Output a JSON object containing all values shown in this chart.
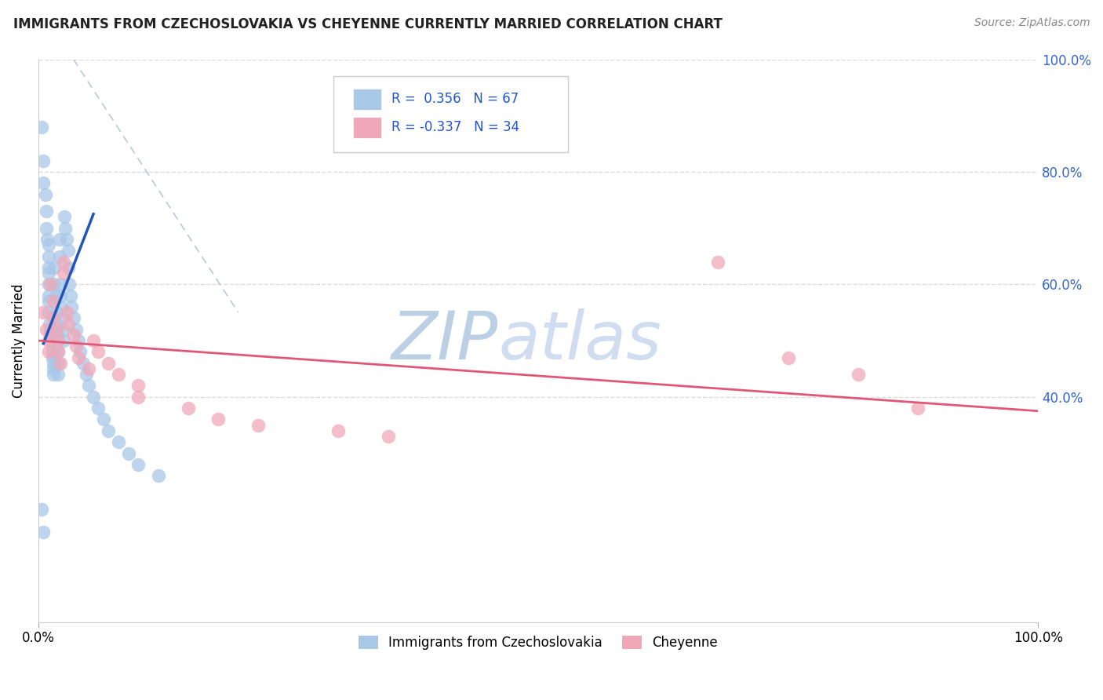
{
  "title": "IMMIGRANTS FROM CZECHOSLOVAKIA VS CHEYENNE CURRENTLY MARRIED CORRELATION CHART",
  "source": "Source: ZipAtlas.com",
  "ylabel": "Currently Married",
  "legend_label1": "Immigrants from Czechoslovakia",
  "legend_label2": "Cheyenne",
  "r1": 0.356,
  "n1": 67,
  "r2": -0.337,
  "n2": 34,
  "color_blue": "#a8c8e8",
  "color_pink": "#f0a8b8",
  "color_blue_line": "#2255bb",
  "color_pink_line": "#e05878",
  "color_watermark_zip": "#b8cfe8",
  "color_watermark_atlas": "#c8daf0",
  "xlim": [
    0,
    1.0
  ],
  "ylim": [
    0,
    1.0
  ],
  "ytick_vals": [
    0.4,
    0.6,
    0.8,
    1.0
  ],
  "ytick_labels": [
    "40.0%",
    "60.0%",
    "80.0%",
    "100.0%"
  ],
  "grid_color": "#dddddd",
  "background_color": "#ffffff",
  "blue_points_x": [
    0.003,
    0.005,
    0.005,
    0.007,
    0.008,
    0.008,
    0.009,
    0.01,
    0.01,
    0.01,
    0.01,
    0.01,
    0.01,
    0.01,
    0.01,
    0.011,
    0.012,
    0.012,
    0.013,
    0.014,
    0.014,
    0.015,
    0.015,
    0.015,
    0.016,
    0.016,
    0.017,
    0.018,
    0.018,
    0.019,
    0.02,
    0.02,
    0.02,
    0.02,
    0.021,
    0.021,
    0.022,
    0.022,
    0.023,
    0.024,
    0.025,
    0.025,
    0.026,
    0.027,
    0.028,
    0.03,
    0.03,
    0.031,
    0.032,
    0.033,
    0.035,
    0.038,
    0.04,
    0.042,
    0.045,
    0.048,
    0.05,
    0.055,
    0.06,
    0.065,
    0.07,
    0.08,
    0.09,
    0.1,
    0.12,
    0.003,
    0.005
  ],
  "blue_points_y": [
    0.88,
    0.82,
    0.78,
    0.76,
    0.73,
    0.7,
    0.68,
    0.67,
    0.65,
    0.63,
    0.62,
    0.6,
    0.58,
    0.57,
    0.55,
    0.53,
    0.52,
    0.51,
    0.5,
    0.48,
    0.47,
    0.46,
    0.45,
    0.44,
    0.63,
    0.6,
    0.58,
    0.55,
    0.53,
    0.51,
    0.5,
    0.48,
    0.46,
    0.44,
    0.68,
    0.65,
    0.6,
    0.58,
    0.56,
    0.54,
    0.52,
    0.5,
    0.72,
    0.7,
    0.68,
    0.66,
    0.63,
    0.6,
    0.58,
    0.56,
    0.54,
    0.52,
    0.5,
    0.48,
    0.46,
    0.44,
    0.42,
    0.4,
    0.38,
    0.36,
    0.34,
    0.32,
    0.3,
    0.28,
    0.26,
    0.2,
    0.16
  ],
  "pink_points_x": [
    0.005,
    0.008,
    0.01,
    0.01,
    0.012,
    0.015,
    0.015,
    0.018,
    0.02,
    0.02,
    0.022,
    0.025,
    0.025,
    0.028,
    0.03,
    0.035,
    0.038,
    0.04,
    0.05,
    0.055,
    0.06,
    0.07,
    0.08,
    0.1,
    0.1,
    0.15,
    0.18,
    0.22,
    0.3,
    0.35,
    0.68,
    0.75,
    0.82,
    0.88
  ],
  "pink_points_y": [
    0.55,
    0.52,
    0.5,
    0.48,
    0.6,
    0.57,
    0.54,
    0.52,
    0.5,
    0.48,
    0.46,
    0.64,
    0.62,
    0.55,
    0.53,
    0.51,
    0.49,
    0.47,
    0.45,
    0.5,
    0.48,
    0.46,
    0.44,
    0.42,
    0.4,
    0.38,
    0.36,
    0.35,
    0.34,
    0.33,
    0.64,
    0.47,
    0.44,
    0.38
  ],
  "blue_line_x": [
    0.005,
    0.055
  ],
  "blue_line_y": [
    0.495,
    0.725
  ],
  "pink_line_x": [
    0.0,
    1.0
  ],
  "pink_line_y": [
    0.5,
    0.375
  ],
  "dash_line_x": [
    0.035,
    0.2
  ],
  "dash_line_y": [
    1.0,
    0.55
  ]
}
